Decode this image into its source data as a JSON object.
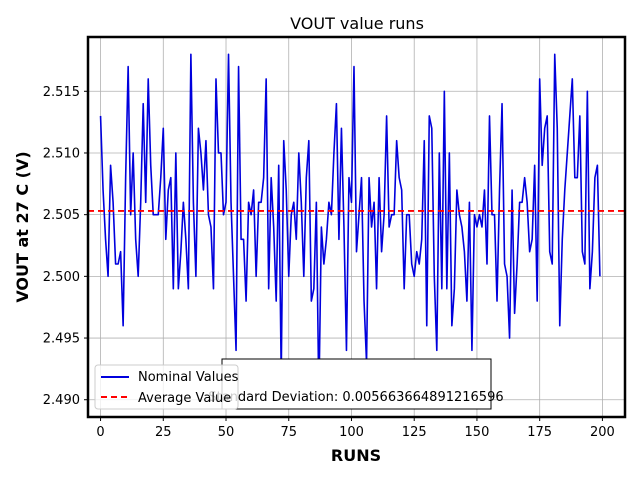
{
  "chart_data": {
    "type": "line",
    "title": "VOUT value runs",
    "xlabel": "RUNS",
    "ylabel": "VOUT at 27 C (V)",
    "xlim": [
      -5,
      209
    ],
    "ylim": [
      2.4886,
      2.5194
    ],
    "xticks": [
      0,
      25,
      50,
      75,
      100,
      125,
      150,
      175,
      200
    ],
    "xtick_labels": [
      "0",
      "25",
      "50",
      "75",
      "100",
      "125",
      "150",
      "175",
      "200"
    ],
    "yticks": [
      2.49,
      2.495,
      2.5,
      2.505,
      2.51,
      2.515
    ],
    "ytick_labels": [
      "2.490",
      "2.495",
      "2.500",
      "2.505",
      "2.510",
      "2.515"
    ],
    "grid": true,
    "legend_position": "lower-left",
    "series": [
      {
        "name": "Nominal Values",
        "color": "#0000dd",
        "style": "solid",
        "x_start": 0,
        "values": [
          2.513,
          2.507,
          2.503,
          2.5,
          2.509,
          2.506,
          2.501,
          2.501,
          2.502,
          2.496,
          2.508,
          2.517,
          2.505,
          2.51,
          2.503,
          2.5,
          2.506,
          2.514,
          2.506,
          2.516,
          2.509,
          2.505,
          2.505,
          2.505,
          2.508,
          2.512,
          2.503,
          2.507,
          2.508,
          2.499,
          2.51,
          2.499,
          2.502,
          2.506,
          2.503,
          2.499,
          2.518,
          2.506,
          2.5,
          2.512,
          2.51,
          2.507,
          2.511,
          2.505,
          2.504,
          2.499,
          2.516,
          2.51,
          2.51,
          2.505,
          2.506,
          2.518,
          2.506,
          2.5,
          2.494,
          2.517,
          2.503,
          2.503,
          2.498,
          2.506,
          2.505,
          2.507,
          2.5,
          2.506,
          2.506,
          2.508,
          2.516,
          2.499,
          2.508,
          2.504,
          2.498,
          2.509,
          2.492,
          2.511,
          2.507,
          2.5,
          2.505,
          2.506,
          2.503,
          2.51,
          2.506,
          2.5,
          2.508,
          2.511,
          2.498,
          2.499,
          2.506,
          2.49,
          2.504,
          2.501,
          2.503,
          2.506,
          2.505,
          2.51,
          2.514,
          2.503,
          2.512,
          2.504,
          2.494,
          2.508,
          2.506,
          2.517,
          2.502,
          2.505,
          2.508,
          2.498,
          2.493,
          2.508,
          2.504,
          2.506,
          2.499,
          2.508,
          2.502,
          2.505,
          2.513,
          2.504,
          2.505,
          2.505,
          2.511,
          2.508,
          2.507,
          2.499,
          2.505,
          2.505,
          2.501,
          2.5,
          2.502,
          2.501,
          2.503,
          2.511,
          2.496,
          2.513,
          2.512,
          2.5,
          2.494,
          2.51,
          2.499,
          2.515,
          2.499,
          2.51,
          2.496,
          2.499,
          2.507,
          2.505,
          2.504,
          2.502,
          2.498,
          2.506,
          2.494,
          2.505,
          2.504,
          2.505,
          2.504,
          2.507,
          2.501,
          2.513,
          2.505,
          2.505,
          2.498,
          2.507,
          2.514,
          2.501,
          2.5,
          2.495,
          2.507,
          2.497,
          2.501,
          2.506,
          2.506,
          2.508,
          2.506,
          2.502,
          2.503,
          2.509,
          2.498,
          2.516,
          2.509,
          2.512,
          2.513,
          2.502,
          2.501,
          2.518,
          2.512,
          2.496,
          2.503,
          2.507,
          2.51,
          2.513,
          2.516,
          2.508,
          2.508,
          2.513,
          2.502,
          2.501,
          2.515,
          2.499,
          2.502,
          2.508,
          2.509,
          2.5
        ]
      },
      {
        "name": "Average Value",
        "color": "#ff0000",
        "style": "dashed",
        "value": 2.5053
      }
    ],
    "annotation": "Standard Deviation: 0.005663664891216596"
  }
}
